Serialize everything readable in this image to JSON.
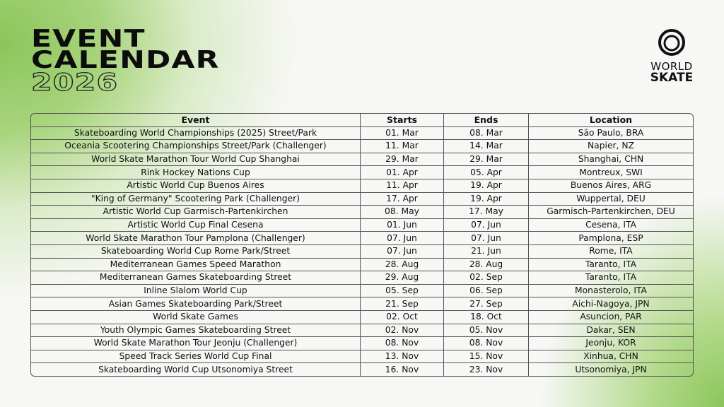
{
  "header": {
    "title_line1": "EVENT",
    "title_line2": "CALENDAR",
    "year": "2026"
  },
  "logo": {
    "text_line1": "WORLD",
    "text_line2": "SKATE",
    "icon": "swirl-logo-icon"
  },
  "colors": {
    "accent_green": "#8cc55a",
    "text": "#111111"
  },
  "table": {
    "columns": [
      "Event",
      "Starts",
      "Ends",
      "Location"
    ],
    "rows": [
      [
        "Skateboarding World Championships (2025) Street/Park",
        "01. Mar",
        "08. Mar",
        "São Paulo, BRA"
      ],
      [
        "Oceania Scootering Championships Street/Park (Challenger)",
        "11. Mar",
        "14. Mar",
        "Napier, NZ"
      ],
      [
        "World Skate Marathon Tour World Cup Shanghai",
        "29. Mar",
        "29. Mar",
        "Shanghai, CHN"
      ],
      [
        "Rink Hockey Nations Cup",
        "01. Apr",
        "05. Apr",
        "Montreux, SWI"
      ],
      [
        "Artistic World Cup Buenos Aires",
        "11. Apr",
        "19. Apr",
        "Buenos Aires, ARG"
      ],
      [
        "\"King of Germany\" Scootering Park (Challenger)",
        "17. Apr",
        "19. Apr",
        "Wuppertal, DEU"
      ],
      [
        "Artistic World Cup Garmisch-Partenkirchen",
        "08. May",
        "17. May",
        "Garmisch-Partenkirchen, DEU"
      ],
      [
        "Artistic World Cup Final Cesena",
        "01. Jun",
        "07. Jun",
        "Cesena, ITA"
      ],
      [
        "World Skate Marathon Tour Pamplona (Challenger)",
        "07. Jun",
        "07. Jun",
        "Pamplona, ESP"
      ],
      [
        "Skateboarding World Cup Rome Park/Street",
        "07. Jun",
        "21. Jun",
        "Rome, ITA"
      ],
      [
        "Mediterranean Games Speed Marathon",
        "28. Aug",
        "28. Aug",
        "Taranto, ITA"
      ],
      [
        "Mediterranean Games Skateboarding Street",
        "29. Aug",
        "02. Sep",
        "Taranto, ITA"
      ],
      [
        "Inline Slalom World Cup",
        "05. Sep",
        "06. Sep",
        "Monasterolo, ITA"
      ],
      [
        "Asian Games Skateboarding Park/Street",
        "21. Sep",
        "27. Sep",
        "Aichi-Nagoya, JPN"
      ],
      [
        "World Skate Games",
        "02. Oct",
        "18. Oct",
        "Asuncion, PAR"
      ],
      [
        "Youth Olympic Games Skateboarding Street",
        "02. Nov",
        "05. Nov",
        "Dakar, SEN"
      ],
      [
        "World Skate Marathon Tour Jeonju (Challenger)",
        "08. Nov",
        "08. Nov",
        "Jeonju, KOR"
      ],
      [
        "Speed Track Series World Cup Final",
        "13. Nov",
        "15. Nov",
        "Xinhua, CHN"
      ],
      [
        "Skateboarding World Cup Utsonomiya Street",
        "16. Nov",
        "23. Nov",
        "Utsonomiya, JPN"
      ]
    ]
  }
}
